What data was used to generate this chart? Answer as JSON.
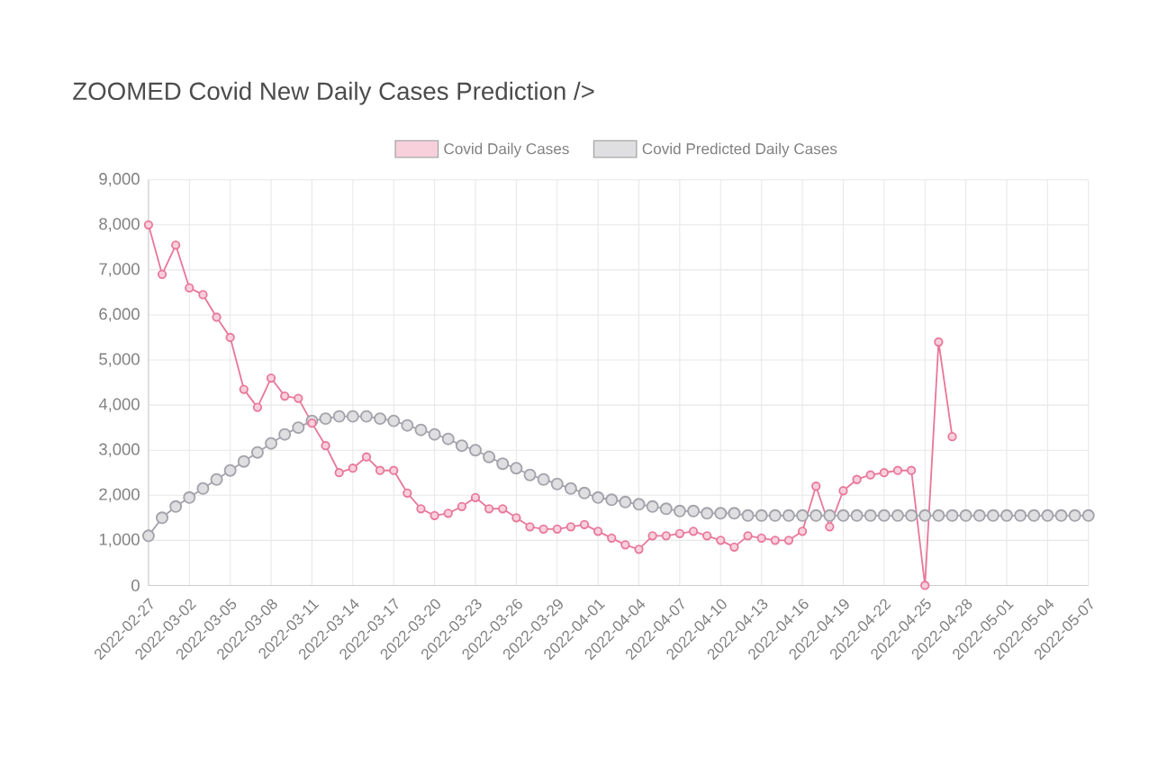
{
  "chart_data": {
    "type": "line",
    "title": "ZOOMED Covid New Daily Cases Prediction />",
    "x": [
      "2022-02-27",
      "2022-02-28",
      "2022-03-01",
      "2022-03-02",
      "2022-03-03",
      "2022-03-04",
      "2022-03-05",
      "2022-03-06",
      "2022-03-07",
      "2022-03-08",
      "2022-03-09",
      "2022-03-10",
      "2022-03-11",
      "2022-03-12",
      "2022-03-13",
      "2022-03-14",
      "2022-03-15",
      "2022-03-16",
      "2022-03-17",
      "2022-03-18",
      "2022-03-19",
      "2022-03-20",
      "2022-03-21",
      "2022-03-22",
      "2022-03-23",
      "2022-03-24",
      "2022-03-25",
      "2022-03-26",
      "2022-03-27",
      "2022-03-28",
      "2022-03-29",
      "2022-03-30",
      "2022-03-31",
      "2022-04-01",
      "2022-04-02",
      "2022-04-03",
      "2022-04-04",
      "2022-04-05",
      "2022-04-06",
      "2022-04-07",
      "2022-04-08",
      "2022-04-09",
      "2022-04-10",
      "2022-04-11",
      "2022-04-12",
      "2022-04-13",
      "2022-04-14",
      "2022-04-15",
      "2022-04-16",
      "2022-04-17",
      "2022-04-18",
      "2022-04-19",
      "2022-04-20",
      "2022-04-21",
      "2022-04-22",
      "2022-04-23",
      "2022-04-24",
      "2022-04-25",
      "2022-04-26",
      "2022-04-27",
      "2022-04-28",
      "2022-04-29",
      "2022-04-30",
      "2022-05-01",
      "2022-05-02",
      "2022-05-03",
      "2022-05-04",
      "2022-05-05",
      "2022-05-06",
      "2022-05-07"
    ],
    "series": [
      {
        "name": "Covid Daily Cases",
        "color": "#e8799b",
        "values": [
          8000,
          6900,
          7550,
          6600,
          6450,
          5950,
          5500,
          4350,
          3950,
          4600,
          4200,
          4150,
          3600,
          3100,
          2500,
          2600,
          2850,
          2550,
          2550,
          2050,
          1700,
          1550,
          1600,
          1750,
          1950,
          1700,
          1700,
          1500,
          1300,
          1250,
          1250,
          1300,
          1350,
          1200,
          1050,
          900,
          800,
          1100,
          1100,
          1150,
          1200,
          1100,
          1000,
          850,
          1100,
          1050,
          1000,
          1000,
          1200,
          2200,
          1300,
          2100,
          2350,
          2450,
          2500,
          2550,
          2550,
          0,
          5400,
          3300,
          null,
          null,
          null,
          null,
          null,
          null,
          null,
          null,
          null,
          null
        ]
      },
      {
        "name": "Covid Predicted Daily Cases",
        "color": "#a3a3ab",
        "values": [
          1100,
          1500,
          1750,
          1950,
          2150,
          2350,
          2550,
          2750,
          2950,
          3150,
          3350,
          3500,
          3650,
          3700,
          3750,
          3750,
          3750,
          3700,
          3650,
          3550,
          3450,
          3350,
          3250,
          3100,
          3000,
          2850,
          2700,
          2600,
          2450,
          2350,
          2250,
          2150,
          2050,
          1950,
          1900,
          1850,
          1800,
          1750,
          1700,
          1650,
          1650,
          1600,
          1600,
          1600,
          1550,
          1550,
          1550,
          1550,
          1550,
          1550,
          1550,
          1550,
          1550,
          1550,
          1550,
          1550,
          1550,
          1550,
          1550,
          1550,
          1550,
          1550,
          1550,
          1550,
          1550,
          1550,
          1550,
          1550,
          1550,
          1550
        ]
      }
    ],
    "xlim": [
      "2022-02-27",
      "2022-05-07"
    ],
    "xticks": [
      "2022-02-27",
      "2022-03-02",
      "2022-03-05",
      "2022-03-08",
      "2022-03-11",
      "2022-03-14",
      "2022-03-17",
      "2022-03-20",
      "2022-03-23",
      "2022-03-26",
      "2022-03-29",
      "2022-04-01",
      "2022-04-04",
      "2022-04-07",
      "2022-04-10",
      "2022-04-13",
      "2022-04-16",
      "2022-04-19",
      "2022-04-22",
      "2022-04-25",
      "2022-04-28",
      "2022-05-01",
      "2022-05-04",
      "2022-05-07"
    ],
    "ylim": [
      0,
      9000
    ],
    "yticks": [
      0,
      {
        "value": 1000,
        "label": "1,000"
      },
      {
        "value": 2000,
        "label": "2,000"
      },
      {
        "value": 3000,
        "label": "3,000"
      },
      {
        "value": 4000,
        "label": "4,000"
      },
      {
        "value": 5000,
        "label": "5,000"
      },
      {
        "value": 6000,
        "label": "6,000"
      },
      {
        "value": 7000,
        "label": "7,000"
      },
      {
        "value": 8000,
        "label": "8,000"
      },
      {
        "value": 9000,
        "label": "9,000"
      }
    ],
    "grid": true,
    "legend": "top",
    "marker": "circle",
    "line_style": "solid"
  }
}
